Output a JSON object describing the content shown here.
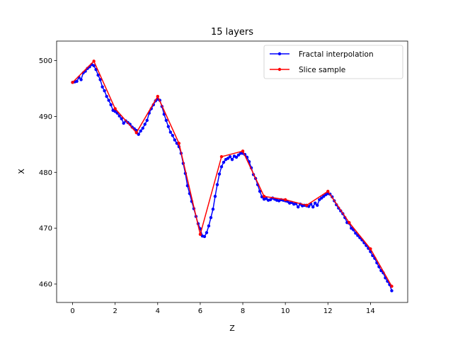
{
  "chart_data": {
    "type": "line",
    "title": "15 layers",
    "xlabel": "Z",
    "ylabel": "X",
    "xlim": [
      -0.75,
      15.75
    ],
    "ylim": [
      456.7,
      503.5
    ],
    "xticks": [
      0,
      2,
      4,
      6,
      8,
      10,
      12,
      14
    ],
    "yticks": [
      460,
      470,
      480,
      490,
      500
    ],
    "grid": false,
    "legend_placement": "top-right",
    "series": [
      {
        "name": "Fractal interpolation",
        "color": "#0000ff",
        "marker": "circle",
        "x": [
          0,
          0.1,
          0.2,
          0.3,
          0.4,
          0.5,
          0.6,
          0.7,
          0.8,
          0.9,
          1.0,
          1.1,
          1.2,
          1.3,
          1.4,
          1.5,
          1.6,
          1.7,
          1.8,
          1.9,
          2.0,
          2.1,
          2.2,
          2.3,
          2.4,
          2.5,
          2.6,
          2.7,
          2.8,
          2.9,
          3.0,
          3.1,
          3.2,
          3.3,
          3.4,
          3.5,
          3.6,
          3.7,
          3.8,
          3.9,
          4.0,
          4.1,
          4.2,
          4.3,
          4.4,
          4.5,
          4.6,
          4.7,
          4.8,
          4.9,
          5.0,
          5.1,
          5.2,
          5.3,
          5.4,
          5.5,
          5.6,
          5.7,
          5.8,
          5.9,
          6.0,
          6.1,
          6.2,
          6.3,
          6.4,
          6.5,
          6.6,
          6.7,
          6.8,
          6.9,
          7.0,
          7.1,
          7.2,
          7.3,
          7.4,
          7.5,
          7.6,
          7.7,
          7.8,
          7.9,
          8.0,
          8.1,
          8.2,
          8.3,
          8.4,
          8.5,
          8.6,
          8.7,
          8.8,
          8.9,
          9.0,
          9.1,
          9.2,
          9.3,
          9.4,
          9.5,
          9.6,
          9.7,
          9.8,
          9.9,
          10.0,
          10.1,
          10.2,
          10.3,
          10.4,
          10.5,
          10.6,
          10.7,
          10.8,
          10.9,
          11.0,
          11.1,
          11.2,
          11.3,
          11.4,
          11.5,
          11.6,
          11.7,
          11.8,
          11.9,
          12.0,
          12.1,
          12.2,
          12.3,
          12.4,
          12.5,
          12.6,
          12.7,
          12.8,
          12.9,
          13.0,
          13.1,
          13.2,
          13.3,
          13.4,
          13.5,
          13.6,
          13.7,
          13.8,
          13.9,
          14.0,
          14.1,
          14.2,
          14.3,
          14.4,
          14.5,
          14.6,
          14.7,
          14.8,
          14.9,
          15.0
        ],
        "y": [
          496.1,
          496.2,
          496.3,
          497.0,
          496.6,
          497.8,
          498.1,
          498.6,
          498.9,
          499.3,
          499.1,
          498.4,
          497.4,
          496.6,
          495.3,
          494.6,
          493.6,
          492.9,
          492.1,
          491.1,
          490.9,
          490.6,
          490.1,
          489.6,
          488.8,
          489.2,
          488.9,
          488.6,
          488.1,
          487.8,
          487.5,
          486.8,
          487.4,
          487.9,
          488.6,
          489.3,
          490.6,
          491.4,
          492.1,
          492.8,
          493.1,
          492.9,
          491.8,
          490.4,
          489.3,
          488.2,
          487.2,
          486.6,
          485.8,
          485.2,
          484.6,
          483.4,
          481.6,
          479.8,
          477.6,
          476.2,
          474.8,
          473.5,
          472.1,
          470.8,
          469.9,
          468.6,
          468.5,
          469.2,
          470.4,
          471.9,
          473.4,
          475.7,
          477.8,
          479.7,
          481.0,
          481.8,
          482.3,
          482.5,
          482.8,
          482.3,
          482.9,
          482.7,
          483.1,
          483.4,
          483.4,
          483.2,
          482.7,
          481.9,
          480.8,
          479.6,
          478.9,
          477.8,
          476.6,
          475.6,
          475.2,
          475.3,
          475.0,
          475.1,
          475.4,
          475.2,
          475.0,
          474.9,
          475.1,
          475.0,
          474.9,
          474.8,
          474.5,
          474.6,
          474.3,
          474.4,
          473.8,
          474.3,
          474.0,
          474.1,
          474.0,
          473.9,
          474.3,
          473.8,
          474.5,
          474.1,
          475.1,
          475.4,
          475.7,
          476.0,
          476.2,
          476.1,
          475.6,
          474.9,
          474.2,
          473.6,
          473.1,
          472.6,
          471.9,
          471.0,
          470.9,
          470.0,
          469.7,
          469.1,
          468.7,
          468.3,
          467.9,
          467.4,
          466.9,
          466.4,
          465.8,
          465.1,
          464.6,
          463.8,
          463.1,
          462.4,
          462.0,
          461.1,
          460.5,
          459.9,
          458.8
        ]
      },
      {
        "name": "Slice sample",
        "color": "#ff0000",
        "marker": "circle",
        "x": [
          0,
          1,
          2,
          3,
          4,
          5,
          6,
          7,
          8,
          9,
          10,
          11,
          12,
          13,
          14,
          15
        ],
        "y": [
          496.1,
          499.9,
          491.4,
          487.1,
          493.6,
          485.2,
          468.9,
          482.8,
          483.8,
          475.7,
          475.1,
          474.1,
          476.6,
          471.0,
          466.3,
          459.6
        ]
      }
    ]
  }
}
